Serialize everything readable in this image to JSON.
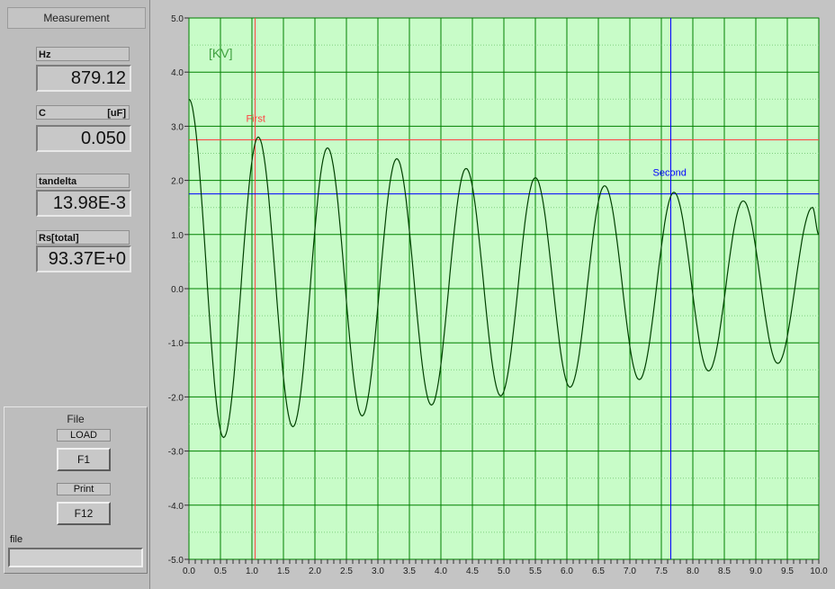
{
  "measurement": {
    "title": "Measurement",
    "fields": [
      {
        "label": "Hz",
        "unit": "",
        "value": "879.12"
      },
      {
        "label": "C",
        "unit": "[uF]",
        "value": "0.050"
      },
      {
        "label": "tandelta",
        "unit": "",
        "value": "13.98E-3"
      },
      {
        "label": "Rs[total]",
        "unit": "",
        "value": "93.37E+0"
      }
    ]
  },
  "file_panel": {
    "title": "File",
    "load_label": "LOAD",
    "load_key": "F1",
    "print_label": "Print",
    "print_key": "F12",
    "file_label": "file",
    "file_value": ""
  },
  "colors": {
    "plot_bg": "#c8fcc8",
    "grid": "#008000",
    "trace": "#004000",
    "cursor_first": "#ff4040",
    "cursor_second": "#0000ff"
  },
  "chart_data": {
    "type": "line",
    "unit_label": "[KV]",
    "xlim": [
      0.0,
      10.0
    ],
    "ylim": [
      -5.0,
      5.0
    ],
    "x_ticks": [
      "0.0",
      "0.5",
      "1.0",
      "1.5",
      "2.0",
      "2.5",
      "3.0",
      "3.5",
      "4.0",
      "4.5",
      "5.0",
      "5.5",
      "6.0",
      "6.5",
      "7.0",
      "7.5",
      "8.0",
      "8.5",
      "9.0",
      "9.5",
      "10.0"
    ],
    "y_ticks": [
      "5.0",
      "4.0",
      "3.0",
      "2.0",
      "1.0",
      "0.0",
      "-1.0",
      "-2.0",
      "-3.0",
      "-4.0",
      "-5.0"
    ],
    "grid": true,
    "series": [
      {
        "x": [
          0.0,
          0.55,
          1.1,
          1.65,
          2.2,
          2.75,
          3.3,
          3.85,
          4.4,
          4.95,
          5.5,
          6.05,
          6.6,
          7.15,
          7.7,
          8.25,
          8.8,
          9.35,
          9.9,
          10.0
        ],
        "y": [
          3.5,
          -2.75,
          2.8,
          -2.55,
          2.6,
          -2.35,
          2.4,
          -2.15,
          2.22,
          -1.98,
          2.05,
          -1.82,
          1.9,
          -1.68,
          1.78,
          -1.52,
          1.62,
          -1.38,
          1.5,
          1.0
        ]
      }
    ],
    "cursors": [
      {
        "name": "First",
        "x": 1.05,
        "y": 2.75
      },
      {
        "name": "Second",
        "x": 7.65,
        "y": 1.75
      }
    ]
  }
}
